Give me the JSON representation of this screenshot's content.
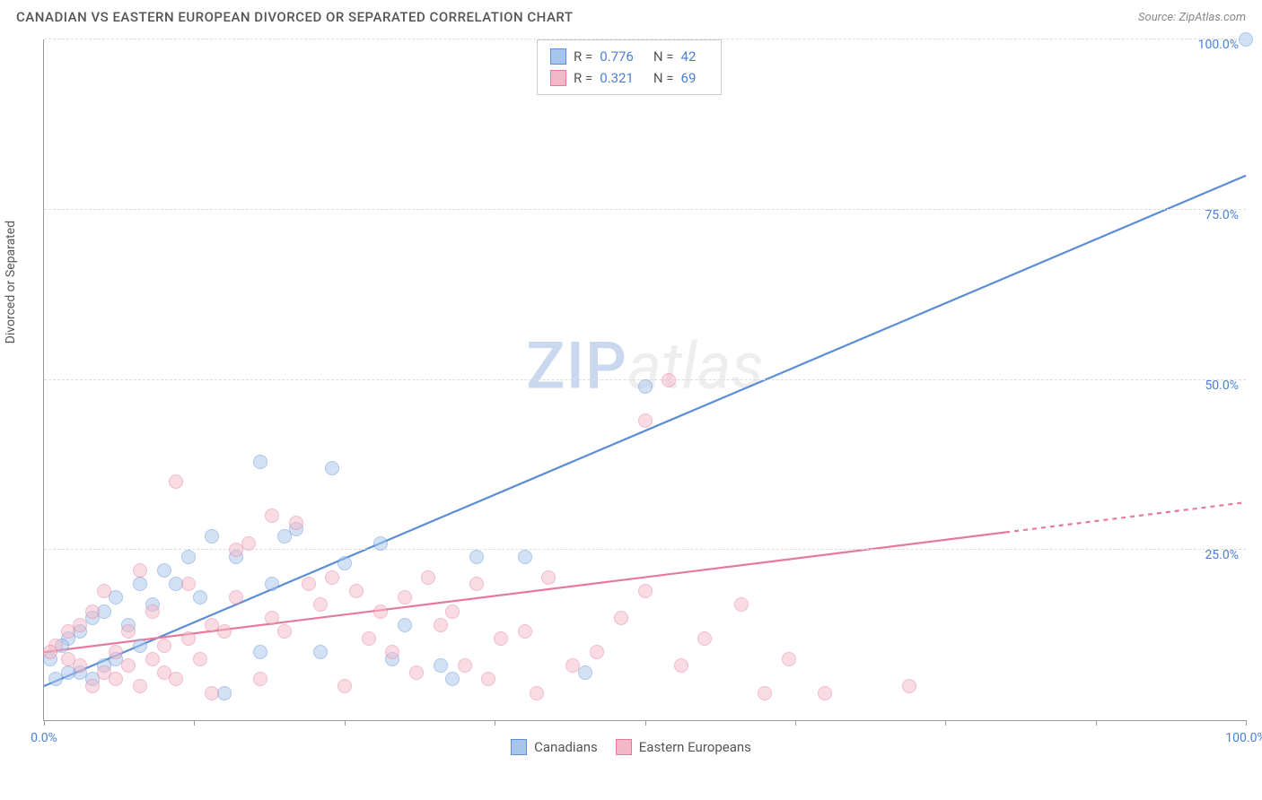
{
  "header": {
    "title": "CANADIAN VS EASTERN EUROPEAN DIVORCED OR SEPARATED CORRELATION CHART",
    "source_label": "Source:",
    "source_name": "ZipAtlas.com"
  },
  "watermark": {
    "part1": "ZIP",
    "part2": "atlas"
  },
  "chart": {
    "type": "scatter",
    "ylabel": "Divorced or Separated",
    "xlim": [
      0,
      100
    ],
    "ylim": [
      0,
      100
    ],
    "x_ticks": [
      0,
      12.5,
      25,
      37.5,
      50,
      62.5,
      75,
      87.5,
      100
    ],
    "x_tick_labels": {
      "0": "0.0%",
      "100": "100.0%"
    },
    "y_gridlines": [
      0,
      25,
      50,
      75,
      100
    ],
    "y_tick_labels": {
      "25": "25.0%",
      "50": "50.0%",
      "75": "75.0%",
      "100": "100.0%"
    },
    "background_color": "#ffffff",
    "grid_color": "#dddddd",
    "axis_color": "#999999",
    "tick_label_color": "#4a7fd6",
    "tick_label_fontsize": 14,
    "axis_label_color": "#555555",
    "axis_label_fontsize": 14,
    "marker_radius": 8,
    "marker_opacity": 0.5,
    "series": [
      {
        "name": "Canadians",
        "color_fill": "#a8c5ec",
        "color_stroke": "#5a8dd6",
        "r_value": "0.776",
        "n_value": "42",
        "regression": {
          "y_at_x0": 5,
          "y_at_x100": 80,
          "dash_from_x": 100
        },
        "points": [
          [
            100,
            100
          ],
          [
            50,
            49
          ],
          [
            24,
            37
          ],
          [
            18,
            38
          ],
          [
            12,
            24
          ],
          [
            16,
            24
          ],
          [
            20,
            27
          ],
          [
            21,
            28
          ],
          [
            10,
            22
          ],
          [
            8,
            20
          ],
          [
            6,
            18
          ],
          [
            5,
            16
          ],
          [
            4,
            15
          ],
          [
            3,
            13
          ],
          [
            2,
            12
          ],
          [
            1.5,
            11
          ],
          [
            25,
            23
          ],
          [
            28,
            26
          ],
          [
            36,
            24
          ],
          [
            40,
            24
          ],
          [
            13,
            18
          ],
          [
            9,
            17
          ],
          [
            7,
            14
          ],
          [
            11,
            20
          ],
          [
            6,
            9
          ],
          [
            5,
            8
          ],
          [
            29,
            9
          ],
          [
            33,
            8
          ],
          [
            34,
            6
          ],
          [
            45,
            7
          ],
          [
            4,
            6
          ],
          [
            3,
            7
          ],
          [
            2,
            7
          ],
          [
            1,
            6
          ],
          [
            0.5,
            9
          ],
          [
            15,
            4
          ],
          [
            18,
            10
          ],
          [
            23,
            10
          ],
          [
            8,
            11
          ],
          [
            14,
            27
          ],
          [
            19,
            20
          ],
          [
            30,
            14
          ]
        ]
      },
      {
        "name": "Eastern Europeans",
        "color_fill": "#f4b8c8",
        "color_stroke": "#e57a9a",
        "r_value": "0.321",
        "n_value": "69",
        "regression": {
          "y_at_x0": 10,
          "y_at_x100": 32,
          "dash_from_x": 80
        },
        "points": [
          [
            52,
            50
          ],
          [
            50,
            44
          ],
          [
            11,
            35
          ],
          [
            19,
            30
          ],
          [
            21,
            29
          ],
          [
            17,
            26
          ],
          [
            16,
            25
          ],
          [
            8,
            22
          ],
          [
            5,
            19
          ],
          [
            4,
            16
          ],
          [
            3,
            14
          ],
          [
            2,
            13
          ],
          [
            1,
            11
          ],
          [
            0.5,
            10
          ],
          [
            6,
            10
          ],
          [
            7,
            8
          ],
          [
            9,
            9
          ],
          [
            10,
            11
          ],
          [
            12,
            12
          ],
          [
            14,
            14
          ],
          [
            15,
            13
          ],
          [
            13,
            9
          ],
          [
            11,
            6
          ],
          [
            18,
            6
          ],
          [
            22,
            20
          ],
          [
            24,
            21
          ],
          [
            26,
            19
          ],
          [
            28,
            16
          ],
          [
            30,
            18
          ],
          [
            32,
            21
          ],
          [
            34,
            16
          ],
          [
            36,
            20
          ],
          [
            38,
            12
          ],
          [
            40,
            13
          ],
          [
            42,
            21
          ],
          [
            44,
            8
          ],
          [
            46,
            10
          ],
          [
            48,
            15
          ],
          [
            55,
            12
          ],
          [
            58,
            17
          ],
          [
            60,
            4
          ],
          [
            62,
            9
          ],
          [
            65,
            4
          ],
          [
            72,
            5
          ],
          [
            53,
            8
          ],
          [
            35,
            8
          ],
          [
            31,
            7
          ],
          [
            25,
            5
          ],
          [
            27,
            12
          ],
          [
            29,
            10
          ],
          [
            20,
            13
          ],
          [
            23,
            17
          ],
          [
            6,
            6
          ],
          [
            8,
            5
          ],
          [
            4,
            5
          ],
          [
            5,
            7
          ],
          [
            3,
            8
          ],
          [
            2,
            9
          ],
          [
            16,
            18
          ],
          [
            19,
            15
          ],
          [
            9,
            16
          ],
          [
            7,
            13
          ],
          [
            12,
            20
          ],
          [
            10,
            7
          ],
          [
            41,
            4
          ],
          [
            33,
            14
          ],
          [
            37,
            6
          ],
          [
            14,
            4
          ],
          [
            50,
            19
          ]
        ]
      }
    ],
    "legend_top": {
      "border_color": "#cccccc",
      "r_label": "R =",
      "n_label": "N ="
    },
    "legend_bottom": {
      "items": [
        "Canadians",
        "Eastern Europeans"
      ]
    }
  }
}
